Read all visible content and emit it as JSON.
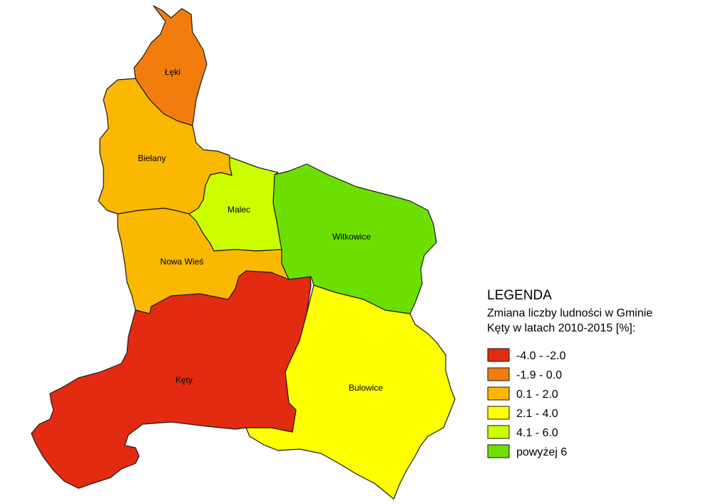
{
  "regions": [
    {
      "id": "leki",
      "name": "Łęki",
      "class_index": 1
    },
    {
      "id": "bielany",
      "name": "Bielany",
      "class_index": 2
    },
    {
      "id": "malec",
      "name": "Malec",
      "class_index": 4
    },
    {
      "id": "witkowice",
      "name": "Witkowice",
      "class_index": 5
    },
    {
      "id": "nowa-wies",
      "name": "Nowa Wieś",
      "class_index": 2
    },
    {
      "id": "kety",
      "name": "Kęty",
      "class_index": 0
    },
    {
      "id": "bulowice",
      "name": "Bulowice",
      "class_index": 3
    }
  ],
  "legend": {
    "title": "LEGENDA",
    "subtitle_line1": "Zmiana liczby ludności w Gminie",
    "subtitle_line2": "Kęty w latach 2010-2015 [%]:",
    "classes": [
      {
        "label": "-4.0 - -2.0",
        "color": "#e32b12"
      },
      {
        "label": "-1.9 - 0.0",
        "color": "#f27d0c"
      },
      {
        "label": "0.1 - 2.0",
        "color": "#fbb800"
      },
      {
        "label": "2.1 - 4.0",
        "color": "#ffff00"
      },
      {
        "label": "4.1 - 6.0",
        "color": "#ccff00"
      },
      {
        "label": "powyżej 6",
        "color": "#6ddf00"
      }
    ]
  }
}
